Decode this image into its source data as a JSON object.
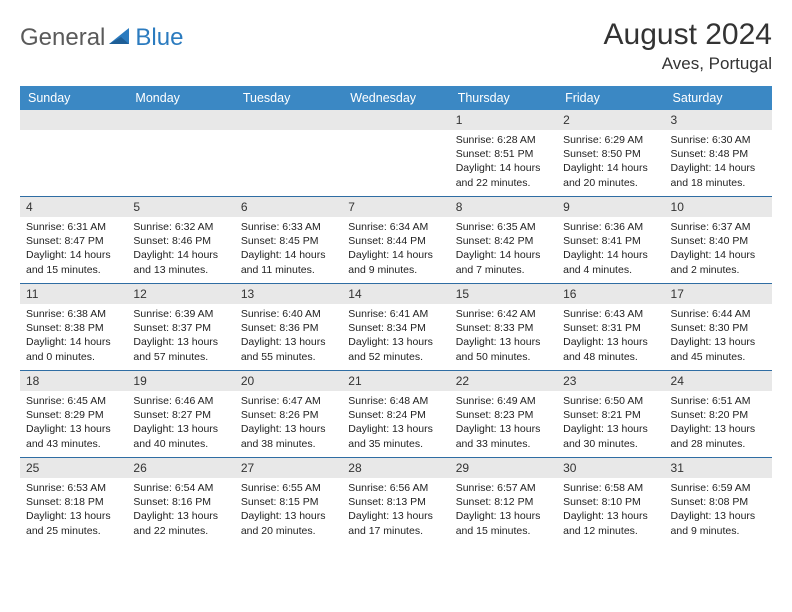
{
  "logo": {
    "general": "General",
    "blue": "Blue"
  },
  "title": "August 2024",
  "location": "Aves, Portugal",
  "colors": {
    "header_bg": "#3b88c4",
    "week_border": "#2f6da3",
    "daynum_bg": "#e8e8e8",
    "logo_gray": "#5a5a5a",
    "logo_blue": "#2b7bbf"
  },
  "day_headers": [
    "Sunday",
    "Monday",
    "Tuesday",
    "Wednesday",
    "Thursday",
    "Friday",
    "Saturday"
  ],
  "weeks": [
    [
      null,
      null,
      null,
      null,
      {
        "n": "1",
        "sunrise": "6:28 AM",
        "sunset": "8:51 PM",
        "dl": "14 hours and 22 minutes."
      },
      {
        "n": "2",
        "sunrise": "6:29 AM",
        "sunset": "8:50 PM",
        "dl": "14 hours and 20 minutes."
      },
      {
        "n": "3",
        "sunrise": "6:30 AM",
        "sunset": "8:48 PM",
        "dl": "14 hours and 18 minutes."
      }
    ],
    [
      {
        "n": "4",
        "sunrise": "6:31 AM",
        "sunset": "8:47 PM",
        "dl": "14 hours and 15 minutes."
      },
      {
        "n": "5",
        "sunrise": "6:32 AM",
        "sunset": "8:46 PM",
        "dl": "14 hours and 13 minutes."
      },
      {
        "n": "6",
        "sunrise": "6:33 AM",
        "sunset": "8:45 PM",
        "dl": "14 hours and 11 minutes."
      },
      {
        "n": "7",
        "sunrise": "6:34 AM",
        "sunset": "8:44 PM",
        "dl": "14 hours and 9 minutes."
      },
      {
        "n": "8",
        "sunrise": "6:35 AM",
        "sunset": "8:42 PM",
        "dl": "14 hours and 7 minutes."
      },
      {
        "n": "9",
        "sunrise": "6:36 AM",
        "sunset": "8:41 PM",
        "dl": "14 hours and 4 minutes."
      },
      {
        "n": "10",
        "sunrise": "6:37 AM",
        "sunset": "8:40 PM",
        "dl": "14 hours and 2 minutes."
      }
    ],
    [
      {
        "n": "11",
        "sunrise": "6:38 AM",
        "sunset": "8:38 PM",
        "dl": "14 hours and 0 minutes."
      },
      {
        "n": "12",
        "sunrise": "6:39 AM",
        "sunset": "8:37 PM",
        "dl": "13 hours and 57 minutes."
      },
      {
        "n": "13",
        "sunrise": "6:40 AM",
        "sunset": "8:36 PM",
        "dl": "13 hours and 55 minutes."
      },
      {
        "n": "14",
        "sunrise": "6:41 AM",
        "sunset": "8:34 PM",
        "dl": "13 hours and 52 minutes."
      },
      {
        "n": "15",
        "sunrise": "6:42 AM",
        "sunset": "8:33 PM",
        "dl": "13 hours and 50 minutes."
      },
      {
        "n": "16",
        "sunrise": "6:43 AM",
        "sunset": "8:31 PM",
        "dl": "13 hours and 48 minutes."
      },
      {
        "n": "17",
        "sunrise": "6:44 AM",
        "sunset": "8:30 PM",
        "dl": "13 hours and 45 minutes."
      }
    ],
    [
      {
        "n": "18",
        "sunrise": "6:45 AM",
        "sunset": "8:29 PM",
        "dl": "13 hours and 43 minutes."
      },
      {
        "n": "19",
        "sunrise": "6:46 AM",
        "sunset": "8:27 PM",
        "dl": "13 hours and 40 minutes."
      },
      {
        "n": "20",
        "sunrise": "6:47 AM",
        "sunset": "8:26 PM",
        "dl": "13 hours and 38 minutes."
      },
      {
        "n": "21",
        "sunrise": "6:48 AM",
        "sunset": "8:24 PM",
        "dl": "13 hours and 35 minutes."
      },
      {
        "n": "22",
        "sunrise": "6:49 AM",
        "sunset": "8:23 PM",
        "dl": "13 hours and 33 minutes."
      },
      {
        "n": "23",
        "sunrise": "6:50 AM",
        "sunset": "8:21 PM",
        "dl": "13 hours and 30 minutes."
      },
      {
        "n": "24",
        "sunrise": "6:51 AM",
        "sunset": "8:20 PM",
        "dl": "13 hours and 28 minutes."
      }
    ],
    [
      {
        "n": "25",
        "sunrise": "6:53 AM",
        "sunset": "8:18 PM",
        "dl": "13 hours and 25 minutes."
      },
      {
        "n": "26",
        "sunrise": "6:54 AM",
        "sunset": "8:16 PM",
        "dl": "13 hours and 22 minutes."
      },
      {
        "n": "27",
        "sunrise": "6:55 AM",
        "sunset": "8:15 PM",
        "dl": "13 hours and 20 minutes."
      },
      {
        "n": "28",
        "sunrise": "6:56 AM",
        "sunset": "8:13 PM",
        "dl": "13 hours and 17 minutes."
      },
      {
        "n": "29",
        "sunrise": "6:57 AM",
        "sunset": "8:12 PM",
        "dl": "13 hours and 15 minutes."
      },
      {
        "n": "30",
        "sunrise": "6:58 AM",
        "sunset": "8:10 PM",
        "dl": "13 hours and 12 minutes."
      },
      {
        "n": "31",
        "sunrise": "6:59 AM",
        "sunset": "8:08 PM",
        "dl": "13 hours and 9 minutes."
      }
    ]
  ],
  "labels": {
    "sunrise": "Sunrise:",
    "sunset": "Sunset:",
    "daylight": "Daylight:"
  }
}
